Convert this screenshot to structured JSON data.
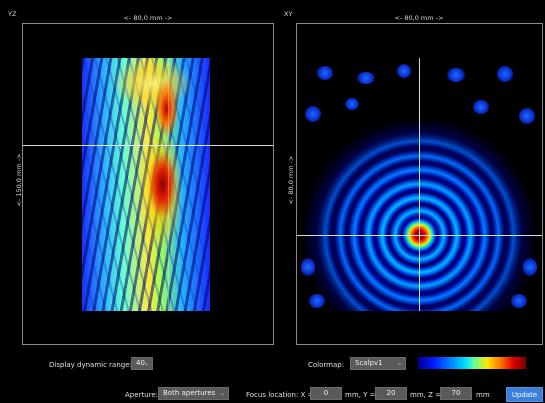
{
  "yz_panel": {
    "label": "YZ",
    "width_dim": "<- 80,0 mm ->",
    "height_dim": "<- 150,0 mm ->"
  },
  "xy_panel": {
    "label": "XY",
    "width_dim": "<- 80,0 mm ->",
    "height_dim": "<- 80,0 mm ->"
  },
  "controls": {
    "dynamic_range_label": "Display dynamic range:",
    "dynamic_range_value": "40",
    "colormap_label": "Colormap:",
    "colormap_value": "Scalpv1",
    "aperture_label": "Aperture:",
    "aperture_value": "Both apertures",
    "focus_label": "Focus location: X =",
    "focus_x": "0",
    "focus_y_label": "mm, Y =",
    "focus_y": "20",
    "focus_z_label": "mm, Z =",
    "focus_z": "70",
    "focus_unit": "mm",
    "update_label": "Update"
  },
  "colors": {
    "update_button": "#3b7fd8",
    "field_box": "#5a5a5a"
  },
  "icons": {
    "dropdown": "chevron-down-icon"
  }
}
